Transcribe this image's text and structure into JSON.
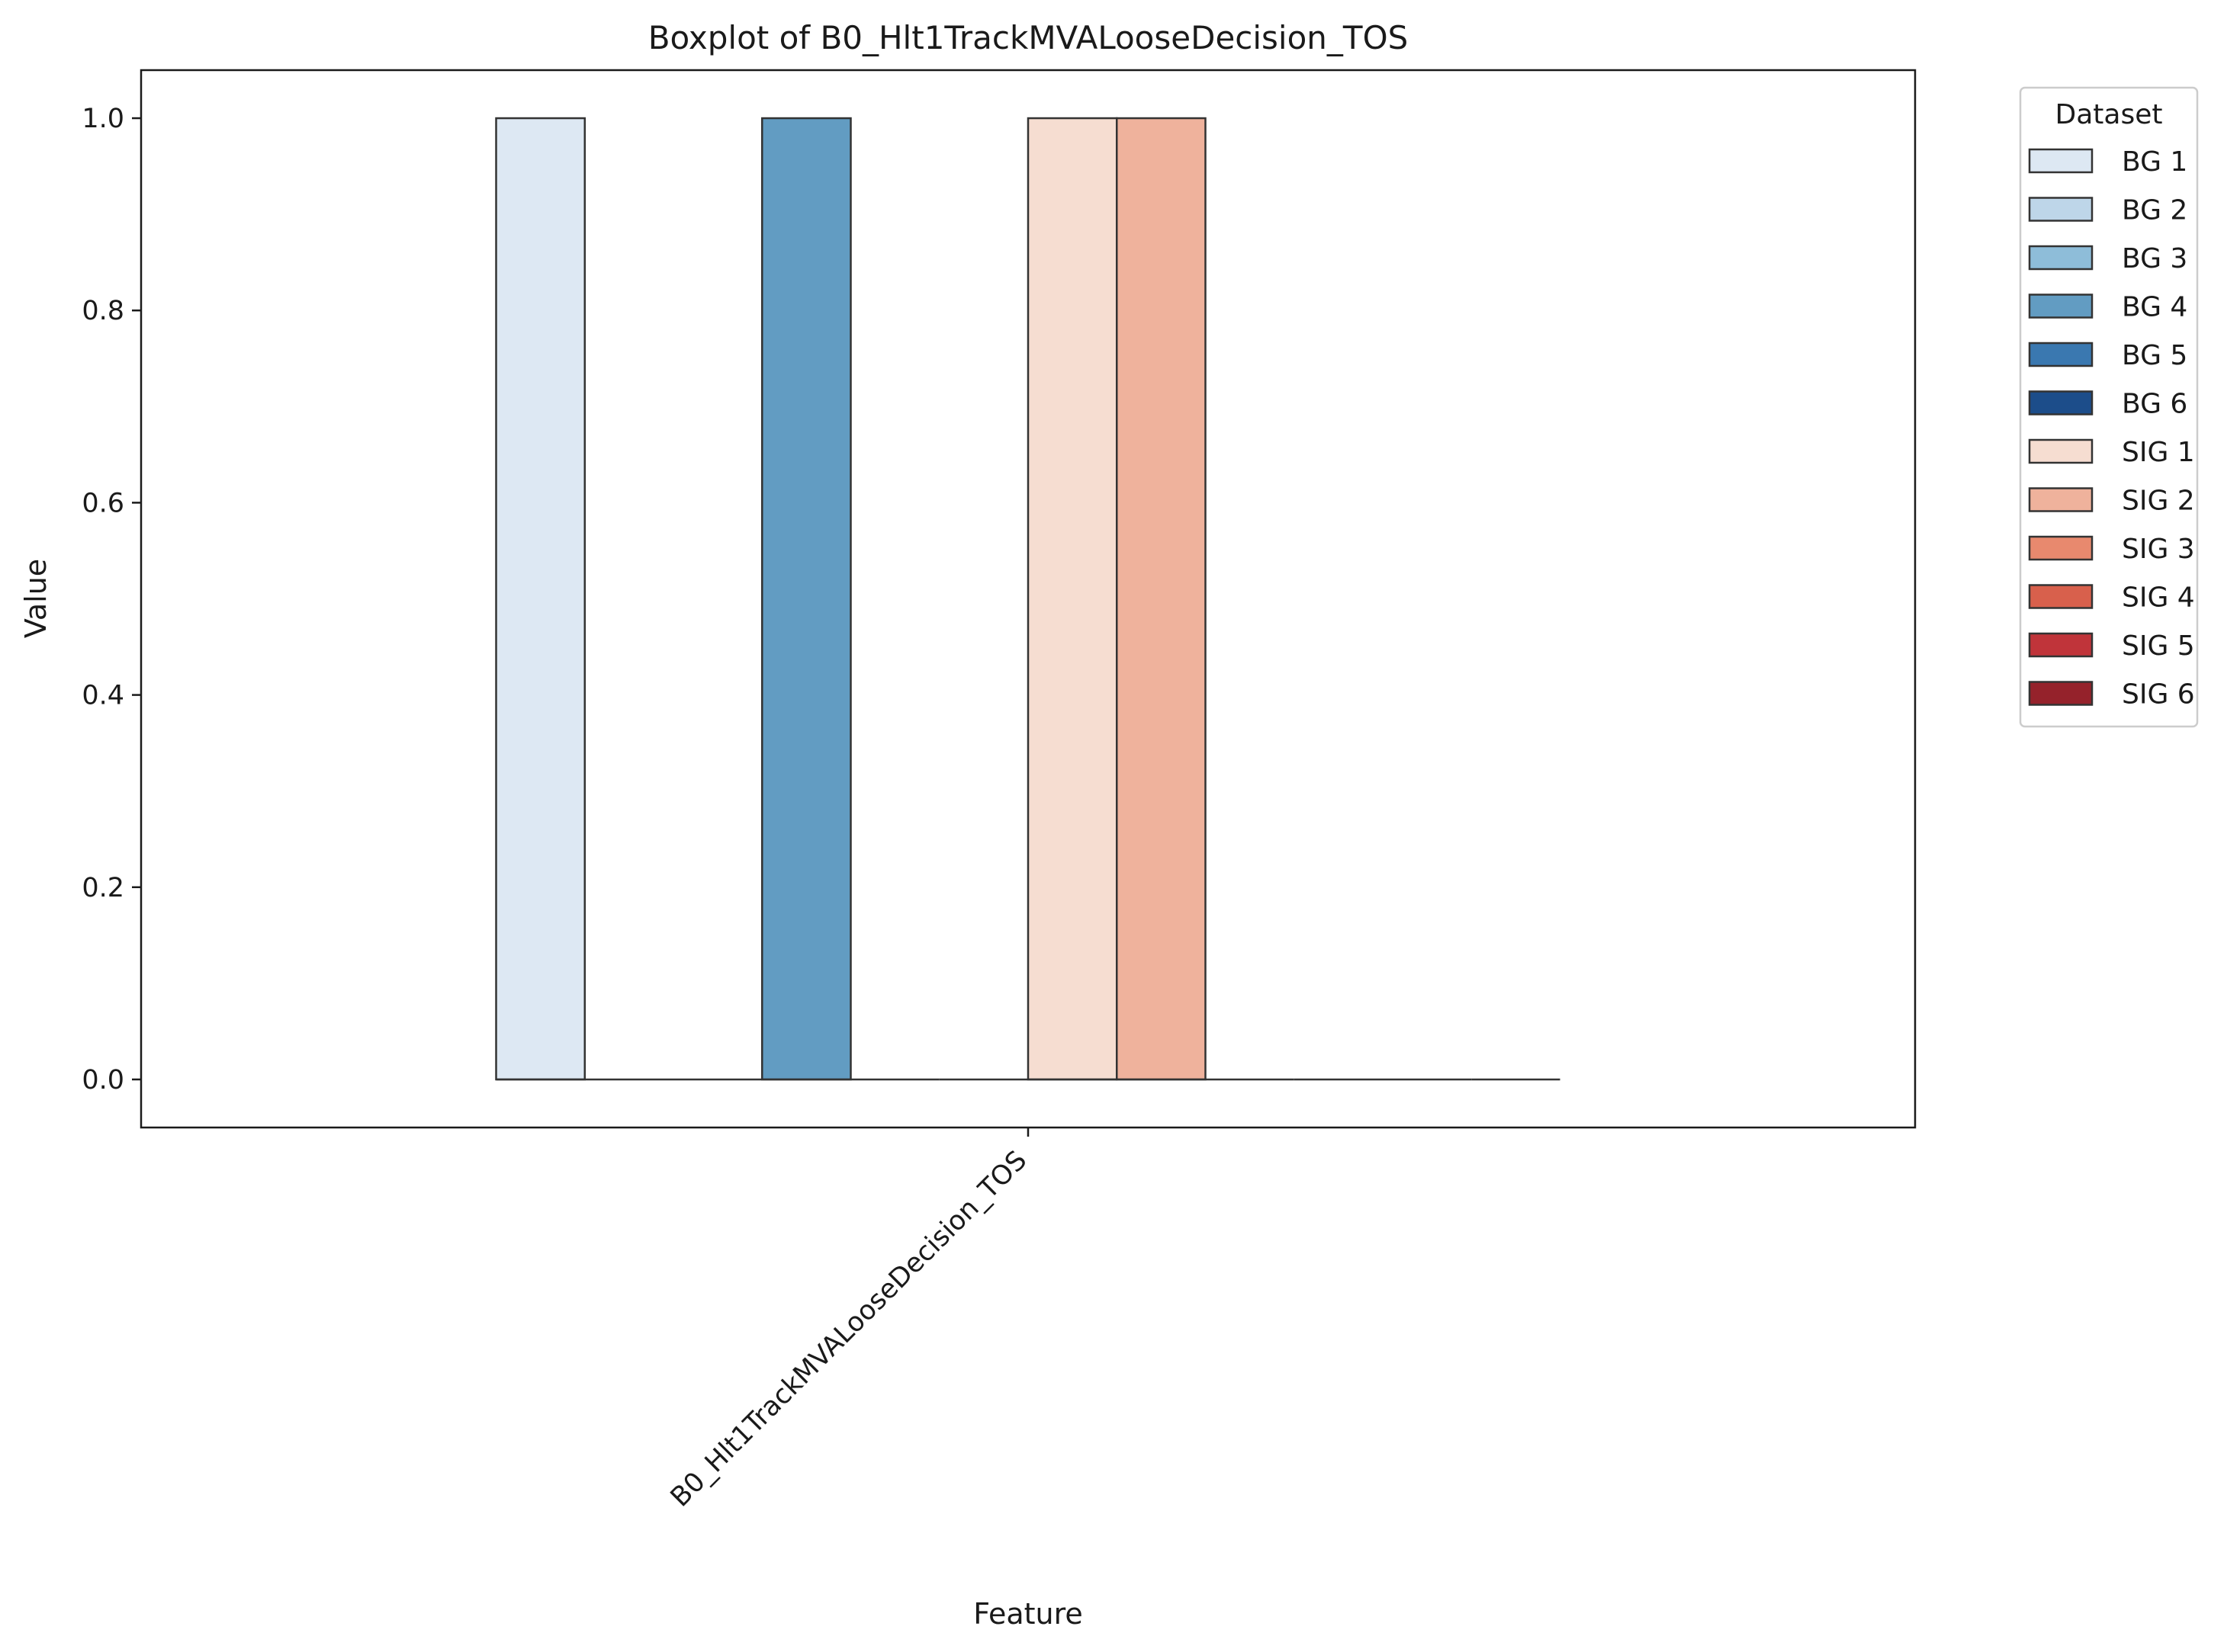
{
  "chart_data": {
    "type": "box",
    "title": "Boxplot of B0_Hlt1TrackMVALooseDecision_TOS",
    "xlabel": "Feature",
    "ylabel": "Value",
    "categories": [
      "B0_Hlt1TrackMVALooseDecision_TOS"
    ],
    "ylim": [
      -0.05,
      1.05
    ],
    "yticks": [
      "0.0",
      "0.2",
      "0.4",
      "0.6",
      "0.8",
      "1.0"
    ],
    "yticks_values": [
      0.0,
      0.2,
      0.4,
      0.6,
      0.8,
      1.0
    ],
    "grid": false,
    "legend": {
      "title": "Dataset",
      "placement": "outside-right-top"
    },
    "series": [
      {
        "name": "BG 1",
        "color": "#dde8f3",
        "q1": 0,
        "median": 0,
        "q3": 1
      },
      {
        "name": "BG 2",
        "color": "#bed6e9",
        "q1": 0,
        "median": 0,
        "q3": 0
      },
      {
        "name": "BG 3",
        "color": "#8ebdd9",
        "q1": 0,
        "median": 0,
        "q3": 0
      },
      {
        "name": "BG 4",
        "color": "#629cc2",
        "q1": 0,
        "median": 0,
        "q3": 1
      },
      {
        "name": "BG 5",
        "color": "#3a78b0",
        "q1": 0,
        "median": 0,
        "q3": 0
      },
      {
        "name": "BG 6",
        "color": "#1c4d8a",
        "q1": 0,
        "median": 0,
        "q3": 0
      },
      {
        "name": "SIG 1",
        "color": "#f6ddd1",
        "q1": 0,
        "median": 0,
        "q3": 1
      },
      {
        "name": "SIG 2",
        "color": "#efb29c",
        "q1": 0,
        "median": 0,
        "q3": 1
      },
      {
        "name": "SIG 3",
        "color": "#e8896e",
        "q1": 0,
        "median": 0,
        "q3": 0
      },
      {
        "name": "SIG 4",
        "color": "#d8604c",
        "q1": 0,
        "median": 0,
        "q3": 0
      },
      {
        "name": "SIG 5",
        "color": "#c0343a",
        "q1": 0,
        "median": 0,
        "q3": 0
      },
      {
        "name": "SIG 6",
        "color": "#95222b",
        "q1": 0,
        "median": 0,
        "q3": 0
      }
    ]
  }
}
